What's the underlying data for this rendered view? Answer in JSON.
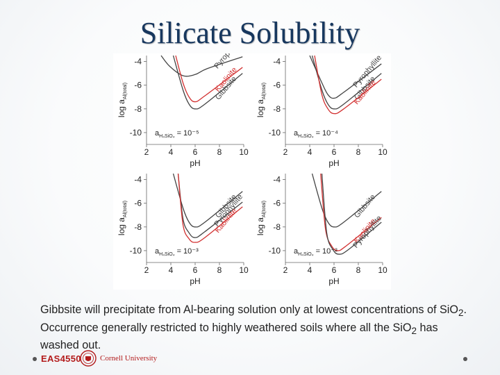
{
  "slide": {
    "title": "Silicate Solubility",
    "caption_parts": [
      "Gibbsite will precipitate from Al-bearing solution only at lowest concentrations of SiO",
      "2",
      ". Occurrence generally restricted to highly weathered soils where all the SiO",
      "2",
      " has washed out."
    ]
  },
  "footer": {
    "course_code": "EAS4550",
    "institution": "Cornell University"
  },
  "colors": {
    "dark_curve": "#444444",
    "red_curve": "#d23030",
    "title": "#17375e"
  },
  "chart_data": [
    {
      "type": "line",
      "panel": "top-left",
      "annotation_main": "a",
      "annotation_sub": "H₄SiO₄",
      "annotation_value": "= 10⁻⁵",
      "xlabel": "pH",
      "ylabel_main": "log a",
      "ylabel_sub": "Al(total)",
      "xlim": [
        2,
        10
      ],
      "ylim": [
        -11,
        -3.5
      ],
      "xticks": [
        "2",
        "4",
        "6",
        "8",
        "10"
      ],
      "yticks": [
        "-4",
        "-6",
        "-8",
        "-10"
      ],
      "series": [
        {
          "name": "Pyrophyllite",
          "color": "#444444",
          "x": [
            3.2,
            3.9,
            5.0,
            6.0,
            7.0,
            9.9
          ],
          "y": [
            -3.5,
            -4.4,
            -5.2,
            -5.1,
            -4.6,
            -3.6
          ]
        },
        {
          "name": "Kaolinite",
          "color": "#d23030",
          "x": [
            4.4,
            5.0,
            5.5,
            6.0,
            6.8,
            9.9
          ],
          "y": [
            -3.5,
            -5.8,
            -7.0,
            -7.4,
            -6.9,
            -4.5
          ]
        },
        {
          "name": "Gibbsite",
          "color": "#444444",
          "x": [
            4.2,
            5.0,
            5.5,
            6.0,
            6.8,
            9.9
          ],
          "y": [
            -3.5,
            -6.4,
            -7.6,
            -8.0,
            -7.6,
            -5.0
          ]
        }
      ]
    },
    {
      "type": "line",
      "panel": "top-right",
      "annotation_main": "a",
      "annotation_sub": "H₄SiO₄",
      "annotation_value": "= 10⁻⁴",
      "xlabel": "pH",
      "ylabel_main": "log a",
      "ylabel_sub": "Al(total)",
      "xlim": [
        2,
        10
      ],
      "ylim": [
        -11,
        -3.5
      ],
      "xticks": [
        "2",
        "4",
        "6",
        "8",
        "10"
      ],
      "yticks": [
        "-4",
        "-6",
        "-8",
        "-10"
      ],
      "series": [
        {
          "name": "Pyrophyllite",
          "color": "#444444",
          "x": [
            4.0,
            5.0,
            5.5,
            6.0,
            6.8,
            9.9
          ],
          "y": [
            -3.5,
            -5.8,
            -6.8,
            -7.1,
            -6.6,
            -4.2
          ]
        },
        {
          "name": "Gibbsite",
          "color": "#444444",
          "x": [
            4.2,
            5.0,
            5.5,
            6.0,
            6.8,
            9.9
          ],
          "y": [
            -3.5,
            -6.4,
            -7.6,
            -8.0,
            -7.6,
            -5.0
          ]
        },
        {
          "name": "Kaolinite",
          "color": "#d23030",
          "x": [
            4.4,
            5.0,
            5.5,
            6.0,
            6.8,
            9.9
          ],
          "y": [
            -3.5,
            -6.8,
            -8.0,
            -8.4,
            -8.0,
            -5.5
          ]
        }
      ]
    },
    {
      "type": "line",
      "panel": "bottom-left",
      "annotation_main": "a",
      "annotation_sub": "H₄SiO₄",
      "annotation_value": "= 10⁻³",
      "xlabel": "pH",
      "ylabel_main": "log a",
      "ylabel_sub": "Al(total)",
      "xlim": [
        2,
        10
      ],
      "ylim": [
        -11,
        -3.5
      ],
      "xticks": [
        "2",
        "4",
        "6",
        "8",
        "10"
      ],
      "yticks": [
        "-4",
        "-6",
        "-8",
        "-10"
      ],
      "series": [
        {
          "name": "Gibbsite",
          "color": "#444444",
          "x": [
            4.2,
            5.0,
            5.5,
            6.0,
            6.8,
            9.9
          ],
          "y": [
            -3.5,
            -6.4,
            -7.6,
            -8.0,
            -7.6,
            -5.0
          ]
        },
        {
          "name": "Pyrophyllite",
          "color": "#444444",
          "x": [
            4.6,
            5.0,
            5.5,
            6.0,
            6.8,
            9.9
          ],
          "y": [
            -3.5,
            -7.3,
            -8.5,
            -8.9,
            -8.4,
            -5.9
          ]
        },
        {
          "name": "Kaolinite",
          "color": "#d23030",
          "x": [
            4.6,
            5.0,
            5.5,
            6.0,
            6.8,
            9.9
          ],
          "y": [
            -3.5,
            -7.8,
            -9.0,
            -9.3,
            -8.9,
            -6.3
          ]
        }
      ]
    },
    {
      "type": "line",
      "panel": "bottom-right",
      "annotation_main": "a",
      "annotation_sub": "H₄SiO₄",
      "annotation_value": "= 10⁻²",
      "xlabel": "pH",
      "ylabel_main": "log a",
      "ylabel_sub": "Al(total)",
      "xlim": [
        2,
        10
      ],
      "ylim": [
        -11,
        -3.5
      ],
      "xticks": [
        "2",
        "4",
        "6",
        "8",
        "10"
      ],
      "yticks": [
        "-4",
        "-6",
        "-8",
        "-10"
      ],
      "series": [
        {
          "name": "Gibbsite",
          "color": "#444444",
          "x": [
            4.2,
            5.0,
            5.5,
            6.0,
            6.8,
            9.9
          ],
          "y": [
            -3.5,
            -6.4,
            -7.6,
            -8.0,
            -7.6,
            -5.0
          ]
        },
        {
          "name": "Kaolinite",
          "color": "#d23030",
          "x": [
            4.9,
            5.3,
            5.8,
            6.3,
            7.0,
            9.9
          ],
          "y": [
            -3.5,
            -8.2,
            -9.6,
            -10.0,
            -9.6,
            -7.2
          ]
        },
        {
          "name": "Pyrophyllite",
          "color": "#444444",
          "x": [
            5.0,
            5.4,
            5.9,
            6.4,
            7.2,
            9.9
          ],
          "y": [
            -3.5,
            -8.5,
            -9.9,
            -10.3,
            -9.9,
            -7.6
          ]
        }
      ]
    }
  ]
}
